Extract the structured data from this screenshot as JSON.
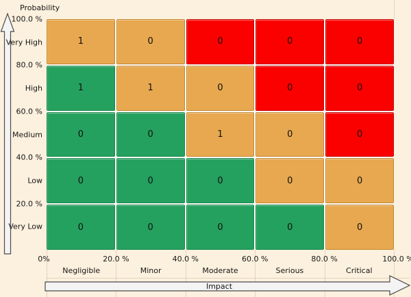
{
  "chart_data": {
    "type": "heatmap",
    "xlabel": "Impact",
    "ylabel": "Probability",
    "x_ticks": [
      "0%",
      "20.0 %",
      "40.0 %",
      "60.0 %",
      "80.0 %",
      "100.0 %"
    ],
    "y_ticks": [
      "100.0 %",
      "80.0 %",
      "60.0 %",
      "40.0 %",
      "20.0 %"
    ],
    "x_categories": [
      "Negligible",
      "Minor",
      "Moderate",
      "Serious",
      "Critical"
    ],
    "y_categories": [
      "Very High",
      "High",
      "Medium",
      "Low",
      "Very Low"
    ],
    "x_range_percent": [
      0,
      100
    ],
    "y_range_percent": [
      0,
      100
    ],
    "colors": {
      "low_risk": "#25A15F",
      "medium_risk": "#E7A850",
      "high_risk": "#FA0100",
      "background": "#FCF1DE"
    },
    "rows": [
      {
        "probability": "Very High",
        "cells": [
          {
            "count": "1",
            "level": "medium"
          },
          {
            "count": "0",
            "level": "medium"
          },
          {
            "count": "0",
            "level": "high"
          },
          {
            "count": "0",
            "level": "high"
          },
          {
            "count": "0",
            "level": "high"
          }
        ]
      },
      {
        "probability": "High",
        "cells": [
          {
            "count": "1",
            "level": "low"
          },
          {
            "count": "1",
            "level": "medium"
          },
          {
            "count": "0",
            "level": "medium"
          },
          {
            "count": "0",
            "level": "high"
          },
          {
            "count": "0",
            "level": "high"
          }
        ]
      },
      {
        "probability": "Medium",
        "cells": [
          {
            "count": "0",
            "level": "low"
          },
          {
            "count": "0",
            "level": "low"
          },
          {
            "count": "1",
            "level": "medium"
          },
          {
            "count": "0",
            "level": "medium"
          },
          {
            "count": "0",
            "level": "high"
          }
        ]
      },
      {
        "probability": "Low",
        "cells": [
          {
            "count": "0",
            "level": "low"
          },
          {
            "count": "0",
            "level": "low"
          },
          {
            "count": "0",
            "level": "low"
          },
          {
            "count": "0",
            "level": "medium"
          },
          {
            "count": "0",
            "level": "medium"
          }
        ]
      },
      {
        "probability": "Very Low",
        "cells": [
          {
            "count": "0",
            "level": "low"
          },
          {
            "count": "0",
            "level": "low"
          },
          {
            "count": "0",
            "level": "low"
          },
          {
            "count": "0",
            "level": "low"
          },
          {
            "count": "0",
            "level": "medium"
          }
        ]
      }
    ]
  }
}
